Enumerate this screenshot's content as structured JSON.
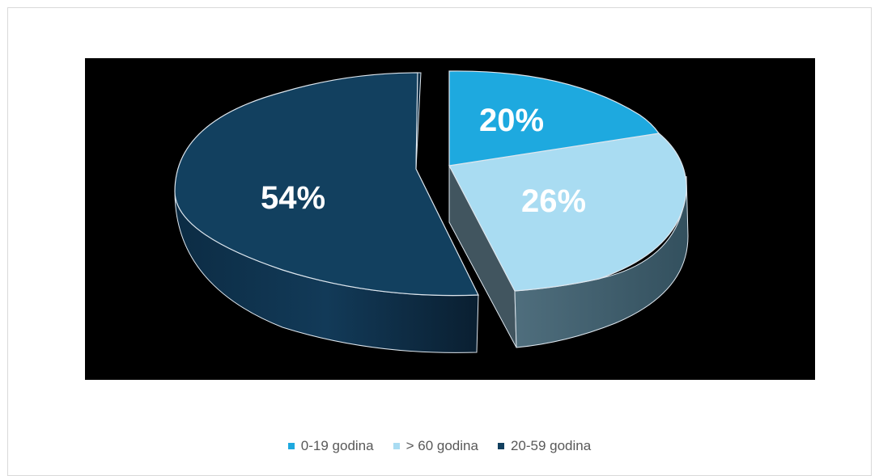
{
  "chart_data": {
    "type": "pie",
    "slices": [
      {
        "label": "0-19 godina",
        "value": 20,
        "data_label": "20%",
        "color": "#1ea9df",
        "label_color": "#ffffff"
      },
      {
        "label": "> 60 godina",
        "value": 26,
        "data_label": "26%",
        "color": "#a9dcf2",
        "label_color": "#ffffff"
      },
      {
        "label": "20-59 godina",
        "value": 54,
        "data_label": "54%",
        "color": "#12405f",
        "label_color": "#ffffff"
      }
    ],
    "legend_position": "bottom",
    "style": "3d-exploded"
  }
}
